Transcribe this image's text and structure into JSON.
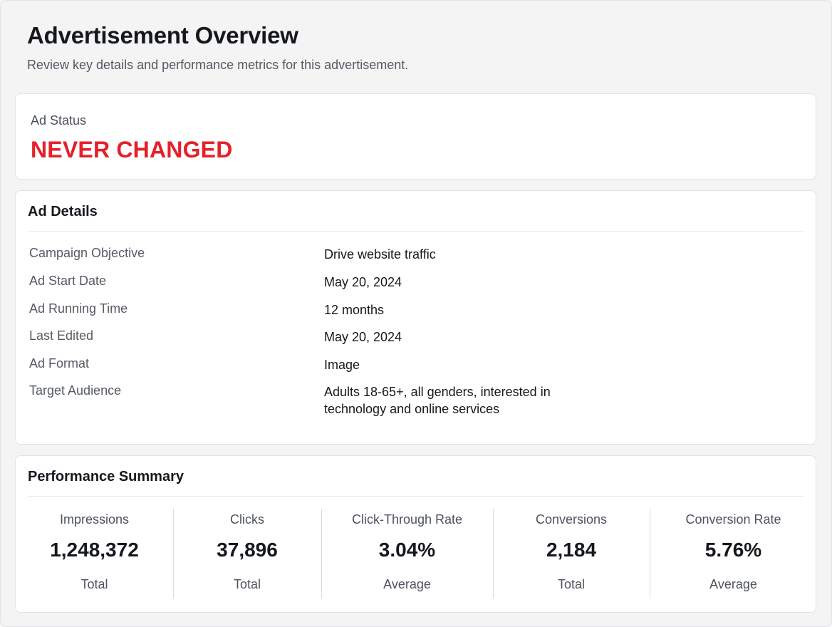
{
  "header": {
    "title": "Advertisement Overview",
    "subtitle": "Review key details and performance metrics for this advertisement."
  },
  "status": {
    "label": "Ad Status",
    "value": "NEVER CHANGED",
    "color": "#e5202a"
  },
  "details": {
    "title": "Ad Details",
    "rows": [
      {
        "label": "Campaign Objective",
        "value": "Drive website traffic"
      },
      {
        "label": "Ad Start Date",
        "value": "May 20, 2024"
      },
      {
        "label": "Ad Running Time",
        "value": "12 months"
      },
      {
        "label": "Last Edited",
        "value": "May 20, 2024"
      },
      {
        "label": "Ad Format",
        "value": "Image"
      },
      {
        "label": "Target Audience",
        "value": "Adults 18-65+, all genders, interested in technology and online services"
      }
    ]
  },
  "performance": {
    "title": "Performance Summary",
    "metrics": [
      {
        "label": "Impressions",
        "value": "1,248,372",
        "sub": "Total"
      },
      {
        "label": "Clicks",
        "value": "37,896",
        "sub": "Total"
      },
      {
        "label": "Click-Through Rate",
        "value": "3.04%",
        "sub": "Average"
      },
      {
        "label": "Conversions",
        "value": "2,184",
        "sub": "Total"
      },
      {
        "label": "Conversion Rate",
        "value": "5.76%",
        "sub": "Average"
      }
    ]
  }
}
